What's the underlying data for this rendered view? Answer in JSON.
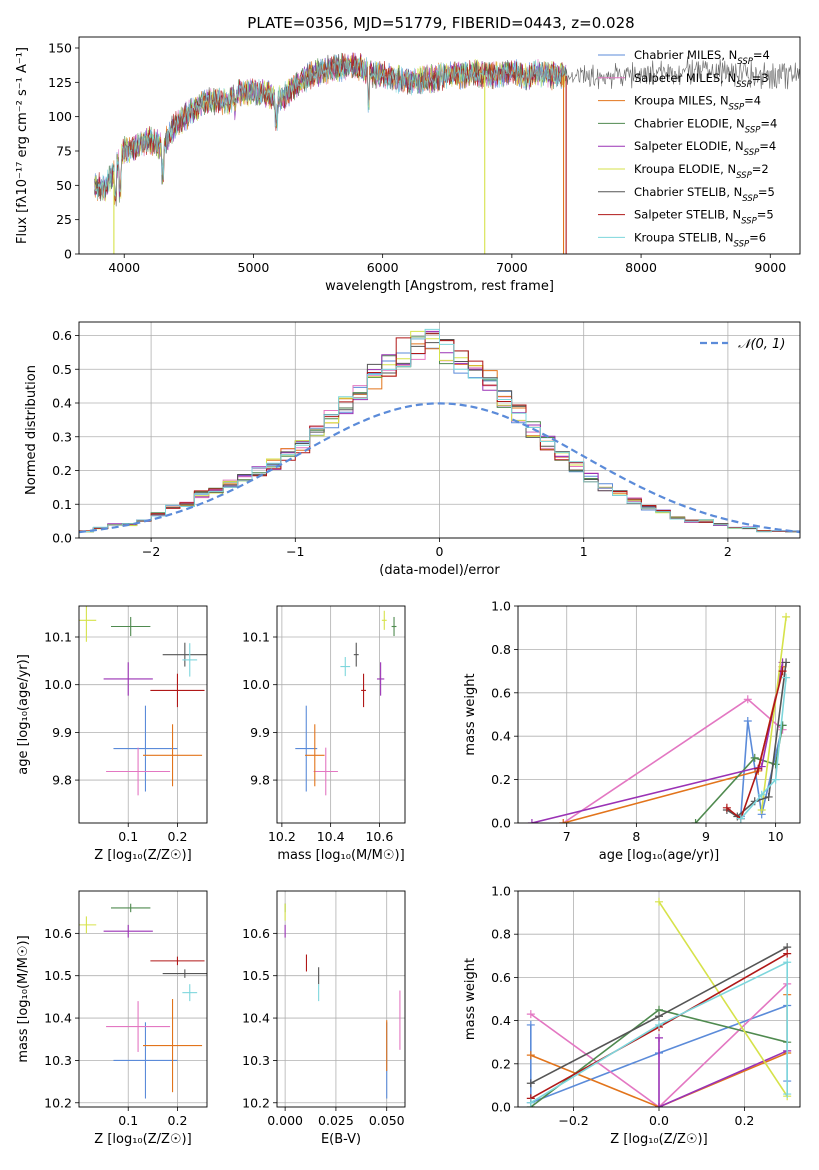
{
  "colors": {
    "chabrier_miles": "#5b8bd9",
    "salpeter_miles": "#e377c2",
    "kroupa_miles": "#e2741b",
    "chabrier_elodie": "#4f8a4f",
    "salpeter_elodie": "#9a32b5",
    "kroupa_elodie": "#d6e24a",
    "chabrier_stelib": "#555555",
    "salpeter_stelib": "#b01818",
    "kroupa_stelib": "#7dd6dc",
    "normal": "#5b8bd9",
    "grid": "#b0b0b0"
  },
  "chart_data": [
    {
      "type": "line",
      "title": "PLATE=0356, MJD=51779, FIBERID=0443, z=0.028",
      "xlabel": "wavelength [Angstrom, rest frame]",
      "ylabel": "Flux [fλ10⁻¹⁷ erg cm⁻² s⁻¹ A⁻¹]",
      "xlim": [
        3650,
        9230
      ],
      "ylim": [
        0,
        158
      ],
      "xticks": [
        "4000",
        "5000",
        "6000",
        "7000",
        "8000",
        "9000"
      ],
      "yticks": [
        "0",
        "25",
        "50",
        "75",
        "100",
        "125",
        "150"
      ],
      "grid": false,
      "legend": "upper right",
      "legend_entries": [
        {
          "base": "Chabrier MILES, N",
          "sub": "SSP",
          "tail": "=4"
        },
        {
          "base": "Salpeter MILES, N",
          "sub": "SSP",
          "tail": "=3"
        },
        {
          "base": "Kroupa MILES, N",
          "sub": "SSP",
          "tail": "=4"
        },
        {
          "base": "Chabrier ELODIE, N",
          "sub": "SSP",
          "tail": "=4"
        },
        {
          "base": "Salpeter ELODIE, N",
          "sub": "SSP",
          "tail": "=4"
        },
        {
          "base": "Kroupa ELODIE, N",
          "sub": "SSP",
          "tail": "=2"
        },
        {
          "base": "Chabrier STELIB, N",
          "sub": "SSP",
          "tail": "=5"
        },
        {
          "base": "Salpeter STELIB, N",
          "sub": "SSP",
          "tail": "=5"
        },
        {
          "base": "Kroupa STELIB, N",
          "sub": "SSP",
          "tail": "=6"
        }
      ],
      "continuum_wavelength": [
        3770,
        3850,
        3920,
        4000,
        4100,
        4200,
        4300,
        4400,
        4500,
        4600,
        4700,
        4800,
        4900,
        5000,
        5100,
        5200,
        5300,
        5400,
        5500,
        5600,
        5700,
        5800,
        5900,
        6000,
        6100,
        6200,
        6300,
        6400,
        6500,
        6600,
        6700,
        6800,
        6900,
        7000,
        7100,
        7200,
        7300,
        7400,
        7600,
        7800,
        8000,
        8200,
        8400,
        8600,
        8800,
        9000,
        9200
      ],
      "continuum_flux": [
        50,
        48,
        60,
        75,
        78,
        83,
        78,
        95,
        102,
        110,
        112,
        110,
        118,
        118,
        117,
        112,
        120,
        128,
        132,
        135,
        136,
        137,
        132,
        130,
        128,
        126,
        127,
        128,
        130,
        130,
        132,
        130,
        131,
        133,
        128,
        132,
        130,
        130,
        128,
        130,
        131,
        132,
        133,
        133,
        131,
        130,
        130
      ]
    },
    {
      "type": "histogram",
      "xlabel": "(data-model)/error",
      "ylabel": "Normed distribution",
      "xlim": [
        -2.5,
        2.5
      ],
      "ylim": [
        0,
        0.64
      ],
      "xticks": [
        "−2",
        "−1",
        "0",
        "1",
        "2"
      ],
      "yticks": [
        "0.0",
        "0.1",
        "0.2",
        "0.3",
        "0.4",
        "0.5",
        "0.6"
      ],
      "grid": true,
      "legend_label": "𝒩(0, 1)",
      "bin_width": 0.1,
      "bin_centers": [
        -2.45,
        -2.35,
        -2.25,
        -2.15,
        -2.05,
        -1.95,
        -1.85,
        -1.75,
        -1.65,
        -1.55,
        -1.45,
        -1.35,
        -1.25,
        -1.15,
        -1.05,
        -0.95,
        -0.85,
        -0.75,
        -0.65,
        -0.55,
        -0.45,
        -0.35,
        -0.25,
        -0.15,
        -0.05,
        0.05,
        0.15,
        0.25,
        0.35,
        0.45,
        0.55,
        0.65,
        0.75,
        0.85,
        0.95,
        1.05,
        1.15,
        1.25,
        1.35,
        1.45,
        1.55,
        1.65,
        1.75,
        1.85,
        1.95,
        2.05,
        2.15,
        2.25,
        2.35,
        2.45
      ],
      "series_profile": [
        0.02,
        0.03,
        0.04,
        0.04,
        0.05,
        0.07,
        0.09,
        0.1,
        0.13,
        0.14,
        0.16,
        0.18,
        0.2,
        0.22,
        0.25,
        0.27,
        0.31,
        0.35,
        0.39,
        0.43,
        0.48,
        0.52,
        0.55,
        0.57,
        0.58,
        0.56,
        0.53,
        0.5,
        0.46,
        0.42,
        0.37,
        0.32,
        0.28,
        0.24,
        0.21,
        0.18,
        0.15,
        0.13,
        0.11,
        0.09,
        0.08,
        0.06,
        0.05,
        0.05,
        0.04,
        0.03,
        0.03,
        0.02,
        0.02,
        0.02
      ]
    },
    {
      "type": "scatter",
      "xlabel": "Z [log₁₀(Z/Z☉)]",
      "ylabel": "age  [log₁₀(age/yr)]",
      "xlim": [
        0.0,
        0.26
      ],
      "ylim": [
        9.71,
        10.165
      ],
      "xticks": [
        "0.1",
        "0.2"
      ],
      "yticks": [
        "9.8",
        "9.9",
        "10.0",
        "10.1"
      ],
      "grid": true,
      "points": [
        {
          "c": "chabrier_miles",
          "x": 0.135,
          "y": 9.866,
          "ex": 0.065,
          "ey": 0.09
        },
        {
          "c": "salpeter_miles",
          "x": 0.12,
          "y": 9.818,
          "ex": 0.065,
          "ey": 0.05
        },
        {
          "c": "kroupa_miles",
          "x": 0.19,
          "y": 9.852,
          "ex": 0.06,
          "ey": 0.065
        },
        {
          "c": "chabrier_elodie",
          "x": 0.105,
          "y": 10.122,
          "ex": 0.04,
          "ey": 0.02
        },
        {
          "c": "salpeter_elodie",
          "x": 0.1,
          "y": 10.012,
          "ex": 0.05,
          "ey": 0.035
        },
        {
          "c": "kroupa_elodie",
          "x": 0.015,
          "y": 10.135,
          "ex": 0.02,
          "ey": 0.045
        },
        {
          "c": "chabrier_stelib",
          "x": 0.215,
          "y": 10.063,
          "ex": 0.045,
          "ey": 0.025
        },
        {
          "c": "salpeter_stelib",
          "x": 0.2,
          "y": 9.988,
          "ex": 0.055,
          "ey": 0.035
        },
        {
          "c": "kroupa_stelib",
          "x": 0.225,
          "y": 10.052,
          "ex": 0.015,
          "ey": 0.035
        }
      ]
    },
    {
      "type": "scatter",
      "xlabel": "mass [log₁₀(M/M☉)]",
      "ylabel": "",
      "xlim": [
        10.18,
        10.705
      ],
      "ylim": [
        9.71,
        10.165
      ],
      "xticks": [
        "10.2",
        "10.4",
        "10.6"
      ],
      "yticks": [
        "9.8",
        "9.9",
        "10.0",
        "10.1"
      ],
      "grid": true,
      "points": [
        {
          "c": "chabrier_miles",
          "x": 10.3,
          "y": 9.866,
          "ex": 0.045,
          "ey": 0.09
        },
        {
          "c": "salpeter_miles",
          "x": 10.38,
          "y": 9.818,
          "ex": 0.05,
          "ey": 0.05
        },
        {
          "c": "kroupa_miles",
          "x": 10.335,
          "y": 9.852,
          "ex": 0.04,
          "ey": 0.065
        },
        {
          "c": "chabrier_elodie",
          "x": 10.66,
          "y": 10.122,
          "ex": 0.01,
          "ey": 0.02
        },
        {
          "c": "salpeter_elodie",
          "x": 10.605,
          "y": 10.012,
          "ex": 0.015,
          "ey": 0.035
        },
        {
          "c": "kroupa_elodie",
          "x": 10.62,
          "y": 10.135,
          "ex": 0.01,
          "ey": 0.02
        },
        {
          "c": "chabrier_stelib",
          "x": 10.505,
          "y": 10.063,
          "ex": 0.01,
          "ey": 0.025
        },
        {
          "c": "salpeter_stelib",
          "x": 10.535,
          "y": 9.988,
          "ex": 0.01,
          "ey": 0.035
        },
        {
          "c": "kroupa_stelib",
          "x": 10.46,
          "y": 10.038,
          "ex": 0.02,
          "ey": 0.02
        }
      ]
    },
    {
      "type": "line",
      "xlabel": "age  [log₁₀(age/yr)]",
      "ylabel": "mass weight",
      "xlim": [
        6.3,
        10.35
      ],
      "ylim": [
        0,
        1
      ],
      "xticks": [
        "7",
        "8",
        "9",
        "10"
      ],
      "yticks": [
        "0.0",
        "0.2",
        "0.4",
        "0.6",
        "0.8",
        "1.0"
      ],
      "grid": true,
      "series": [
        {
          "c": "chabrier_miles",
          "x": [
            9.5,
            9.6,
            9.8,
            10.1
          ],
          "y": [
            0.03,
            0.47,
            0.04,
            0.45
          ]
        },
        {
          "c": "salpeter_miles",
          "x": [
            6.95,
            9.6,
            10.1
          ],
          "y": [
            0.0,
            0.57,
            0.43
          ]
        },
        {
          "c": "kroupa_miles",
          "x": [
            6.95,
            9.75,
            10.1
          ],
          "y": [
            0.0,
            0.24,
            0.72
          ]
        },
        {
          "c": "chabrier_elodie",
          "x": [
            8.85,
            9.7,
            10.0,
            10.1
          ],
          "y": [
            0.0,
            0.3,
            0.27,
            0.45
          ]
        },
        {
          "c": "salpeter_elodie",
          "x": [
            6.5,
            9.8,
            10.1
          ],
          "y": [
            0.0,
            0.26,
            0.74
          ]
        },
        {
          "c": "kroupa_elodie",
          "x": [
            9.8,
            10.15
          ],
          "y": [
            0.06,
            0.95
          ]
        },
        {
          "c": "chabrier_stelib",
          "x": [
            9.3,
            9.45,
            9.7,
            9.9,
            10.15
          ],
          "y": [
            0.06,
            0.03,
            0.1,
            0.12,
            0.74
          ]
        },
        {
          "c": "salpeter_stelib",
          "x": [
            9.3,
            9.5,
            9.75,
            10.1
          ],
          "y": [
            0.07,
            0.02,
            0.25,
            0.7
          ]
        },
        {
          "c": "kroupa_stelib",
          "x": [
            9.5,
            9.8,
            10.0,
            10.15
          ],
          "y": [
            0.02,
            0.13,
            0.2,
            0.67
          ]
        }
      ]
    },
    {
      "type": "scatter",
      "xlabel": "Z [log₁₀(Z/Z☉)]",
      "ylabel": "mass [log₁₀(M/M☉)]",
      "xlim": [
        0.0,
        0.26
      ],
      "ylim": [
        10.19,
        10.7
      ],
      "xticks": [
        "0.1",
        "0.2"
      ],
      "yticks": [
        "10.2",
        "10.3",
        "10.4",
        "10.5",
        "10.6"
      ],
      "grid": true,
      "points": [
        {
          "c": "chabrier_miles",
          "x": 0.135,
          "y": 10.3,
          "ex": 0.065,
          "ey": 0.09
        },
        {
          "c": "salpeter_miles",
          "x": 0.12,
          "y": 10.38,
          "ex": 0.065,
          "ey": 0.06
        },
        {
          "c": "kroupa_miles",
          "x": 0.19,
          "y": 10.335,
          "ex": 0.06,
          "ey": 0.11
        },
        {
          "c": "chabrier_elodie",
          "x": 0.105,
          "y": 10.66,
          "ex": 0.04,
          "ey": 0.01
        },
        {
          "c": "salpeter_elodie",
          "x": 0.1,
          "y": 10.605,
          "ex": 0.05,
          "ey": 0.015
        },
        {
          "c": "kroupa_elodie",
          "x": 0.015,
          "y": 10.62,
          "ex": 0.02,
          "ey": 0.02
        },
        {
          "c": "chabrier_stelib",
          "x": 0.215,
          "y": 10.505,
          "ex": 0.045,
          "ey": 0.01
        },
        {
          "c": "salpeter_stelib",
          "x": 0.2,
          "y": 10.535,
          "ex": 0.055,
          "ey": 0.01
        },
        {
          "c": "kroupa_stelib",
          "x": 0.225,
          "y": 10.46,
          "ex": 0.015,
          "ey": 0.02
        }
      ]
    },
    {
      "type": "scatter",
      "xlabel": "E(B-V)",
      "ylabel": "",
      "xlim": [
        -0.004,
        0.059
      ],
      "ylim": [
        10.19,
        10.7
      ],
      "xticks": [
        "0.000",
        "0.025",
        "0.050"
      ],
      "yticks": [
        "10.2",
        "10.3",
        "10.4",
        "10.5",
        "10.6"
      ],
      "grid": true,
      "points": [
        {
          "c": "chabrier_miles",
          "x": 0.05,
          "y": 10.3,
          "ex": 0,
          "ey": 0.09
        },
        {
          "c": "salpeter_miles",
          "x": 0.0565,
          "y": 10.395,
          "ex": 0,
          "ey": 0.07
        },
        {
          "c": "kroupa_miles",
          "x": 0.05,
          "y": 10.335,
          "ex": 0,
          "ey": 0.06
        },
        {
          "c": "chabrier_elodie",
          "x": 0.0,
          "y": 10.66,
          "ex": 0,
          "ey": 0.01
        },
        {
          "c": "salpeter_elodie",
          "x": 0.0,
          "y": 10.605,
          "ex": 0,
          "ey": 0.015
        },
        {
          "c": "kroupa_elodie",
          "x": 0.0,
          "y": 10.65,
          "ex": 0,
          "ey": 0.02
        },
        {
          "c": "chabrier_stelib",
          "x": 0.0165,
          "y": 10.5,
          "ex": 0,
          "ey": 0.02
        },
        {
          "c": "salpeter_stelib",
          "x": 0.0105,
          "y": 10.53,
          "ex": 0,
          "ey": 0.02
        },
        {
          "c": "kroupa_stelib",
          "x": 0.0165,
          "y": 10.46,
          "ex": 0,
          "ey": 0.02
        }
      ]
    },
    {
      "type": "line",
      "xlabel": "Z [log₁₀(Z/Z☉)]",
      "ylabel": "mass weight",
      "xlim": [
        -0.33,
        0.33
      ],
      "ylim": [
        0,
        1
      ],
      "xticks": [
        "−0.2",
        "0.0",
        "0.2"
      ],
      "yticks": [
        "0.0",
        "0.2",
        "0.4",
        "0.6",
        "0.8",
        "1.0"
      ],
      "grid": true,
      "series": [
        {
          "c": "chabrier_miles",
          "x": [
            -0.3,
            -0.3,
            0.0,
            0.3,
            0.3
          ],
          "y": [
            0.38,
            0.02,
            0.25,
            0.47,
            0.12
          ]
        },
        {
          "c": "salpeter_miles",
          "x": [
            -0.3,
            0.0,
            0.3
          ],
          "y": [
            0.43,
            0.0,
            0.57
          ]
        },
        {
          "c": "kroupa_miles",
          "x": [
            -0.3,
            0.0,
            0.3,
            0.3
          ],
          "y": [
            0.24,
            0.0,
            0.25,
            0.52
          ]
        },
        {
          "c": "chabrier_elodie",
          "x": [
            -0.3,
            0.0,
            0.3
          ],
          "y": [
            0.0,
            0.45,
            0.3
          ]
        },
        {
          "c": "salpeter_elodie",
          "x": [
            0.0,
            0.0,
            0.3
          ],
          "y": [
            0.32,
            0.0,
            0.26
          ]
        },
        {
          "c": "kroupa_elodie",
          "x": [
            0.0,
            0.3
          ],
          "y": [
            0.95,
            0.05
          ]
        },
        {
          "c": "chabrier_stelib",
          "x": [
            -0.3,
            0.0,
            0.3
          ],
          "y": [
            0.11,
            0.42,
            0.74
          ]
        },
        {
          "c": "salpeter_stelib",
          "x": [
            -0.3,
            0.0,
            0.3
          ],
          "y": [
            0.04,
            0.37,
            0.71
          ]
        },
        {
          "c": "kroupa_stelib",
          "x": [
            -0.3,
            0.0,
            0.3,
            0.3
          ],
          "y": [
            0.02,
            0.38,
            0.67,
            0.06
          ]
        }
      ]
    }
  ]
}
